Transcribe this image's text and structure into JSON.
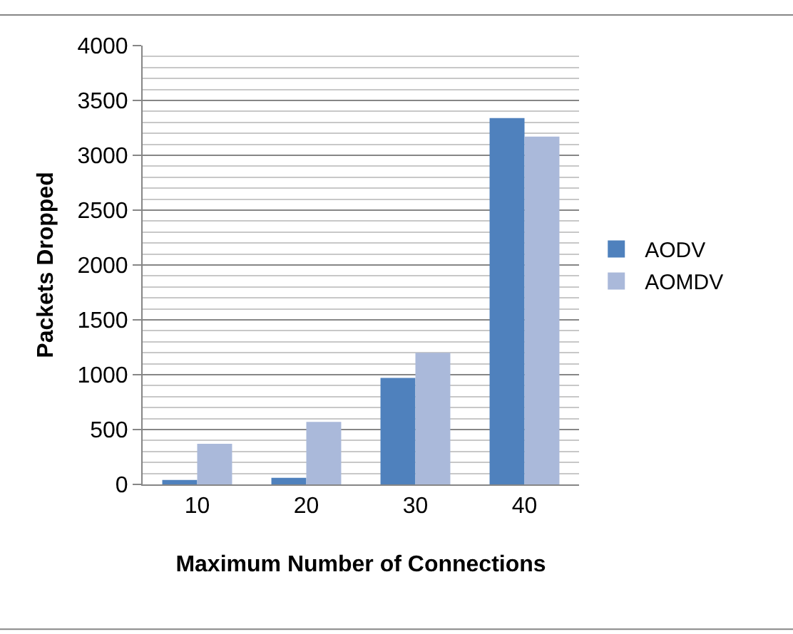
{
  "chart_data": {
    "type": "bar",
    "categories": [
      "10",
      "20",
      "30",
      "40"
    ],
    "series": [
      {
        "name": "AODV",
        "color": "#4f81bd",
        "values": [
          40,
          60,
          970,
          3340
        ]
      },
      {
        "name": "AOMDV",
        "color": "#aab9da",
        "values": [
          370,
          570,
          1200,
          3170
        ]
      }
    ],
    "xlabel": "Maximum Number of Connections",
    "ylabel": "Packets Dropped",
    "ylim": [
      0,
      4000
    ],
    "yticks": [
      0,
      500,
      1000,
      1500,
      2000,
      2500,
      3000,
      3500,
      4000
    ],
    "grid": "y",
    "legend": "right"
  }
}
